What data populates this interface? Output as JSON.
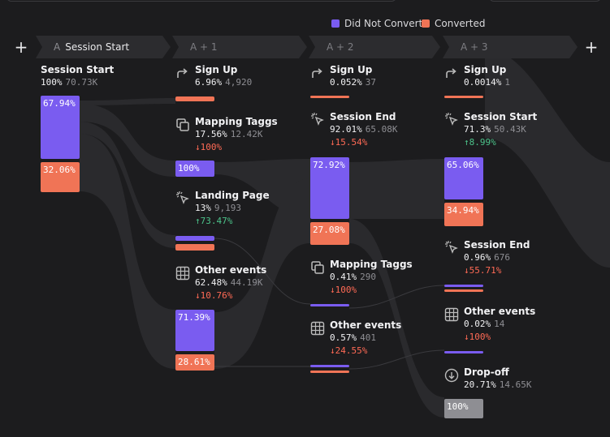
{
  "legend": {
    "did_not_convert": "Did Not Convert",
    "converted": "Converted",
    "color_did_not_convert": "#7a5cf0",
    "color_converted": "#f07456"
  },
  "steps": [
    {
      "letter": "A",
      "name": "Session Start"
    },
    {
      "letter": "A + 1",
      "name": ""
    },
    {
      "letter": "A + 2",
      "name": ""
    },
    {
      "letter": "A + 3",
      "name": ""
    }
  ],
  "col0": {
    "session_start": {
      "title": "Session Start",
      "pct": "100%",
      "count": "70.73K",
      "bar_purple": "67.94%",
      "bar_orange": "32.06%"
    }
  },
  "col1": {
    "sign_up": {
      "title": "Sign Up",
      "pct": "6.96%",
      "count": "4,920",
      "icon": "redirect-icon"
    },
    "mapping_taggs": {
      "title": "Mapping Taggs",
      "pct": "17.56%",
      "count": "12.42K",
      "change": "↓100%",
      "bar_purple": "100%",
      "icon": "copy-icon"
    },
    "landing_page": {
      "title": "Landing Page",
      "pct": "13%",
      "count": "9,193",
      "change": "↑73.47%",
      "icon": "cursor-click-icon"
    },
    "other_events": {
      "title": "Other events",
      "pct": "62.48%",
      "count": "44.19K",
      "change": "↓10.76%",
      "bar_purple": "71.39%",
      "bar_orange": "28.61%",
      "icon": "grid-icon"
    }
  },
  "col2": {
    "sign_up": {
      "title": "Sign Up",
      "pct": "0.052%",
      "count": "37",
      "icon": "redirect-icon"
    },
    "session_end": {
      "title": "Session End",
      "pct": "92.01%",
      "count": "65.08K",
      "change": "↓15.54%",
      "bar_purple": "72.92%",
      "bar_orange": "27.08%",
      "icon": "cursor-click-icon"
    },
    "mapping_taggs": {
      "title": "Mapping Taggs",
      "pct": "0.41%",
      "count": "290",
      "change": "↓100%",
      "icon": "copy-icon"
    },
    "other_events": {
      "title": "Other events",
      "pct": "0.57%",
      "count": "401",
      "change": "↓24.55%",
      "icon": "grid-icon"
    }
  },
  "col3": {
    "sign_up": {
      "title": "Sign Up",
      "pct": "0.0014%",
      "count": "1",
      "icon": "redirect-icon"
    },
    "session_start": {
      "title": "Session Start",
      "pct": "71.3%",
      "count": "50.43K",
      "change": "↑8.99%",
      "bar_purple": "65.06%",
      "bar_orange": "34.94%",
      "icon": "cursor-click-icon"
    },
    "session_end": {
      "title": "Session End",
      "pct": "0.96%",
      "count": "676",
      "change": "↓55.71%",
      "icon": "cursor-click-icon"
    },
    "other_events": {
      "title": "Other events",
      "pct": "0.02%",
      "count": "14",
      "change": "↓100%",
      "icon": "grid-icon"
    },
    "drop_off": {
      "title": "Drop-off",
      "pct": "20.71%",
      "count": "14.65K",
      "bar_grey": "100%",
      "icon": "arrow-down-circle-icon"
    }
  }
}
